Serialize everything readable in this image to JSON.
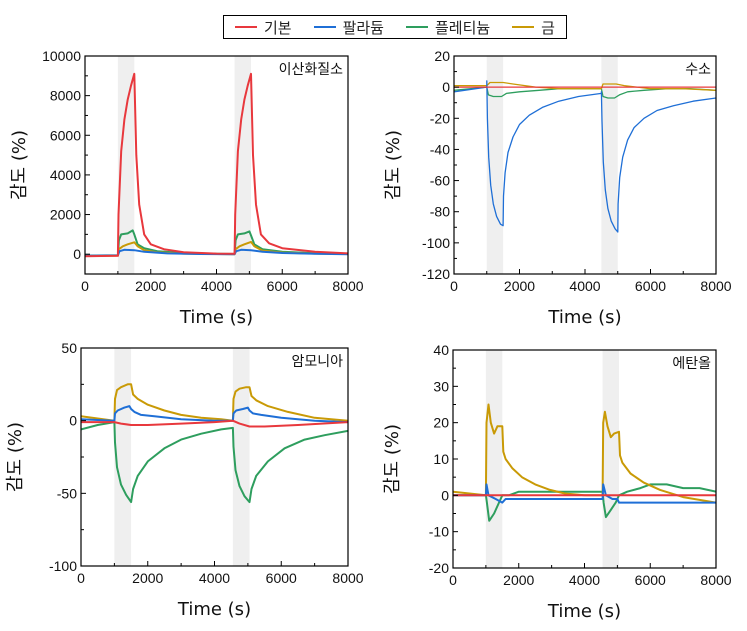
{
  "legend": [
    {
      "name": "기본",
      "color": "#e8383d"
    },
    {
      "name": "팔라듐",
      "color": "#1f6fd6"
    },
    {
      "name": "플레티늄",
      "color": "#2e9e5e"
    },
    {
      "name": "금",
      "color": "#c99a06"
    }
  ],
  "chart_data": [
    {
      "type": "line",
      "title": "이산화질소",
      "xlabel": "Time (s)",
      "ylabel": "감도 (%)",
      "xlim": [
        0,
        8000
      ],
      "ylim": [
        -1000,
        10000
      ],
      "xticks": [
        0,
        2000,
        4000,
        6000,
        8000
      ],
      "yticks": [
        0,
        2000,
        4000,
        6000,
        8000,
        10000
      ],
      "shaded_intervals": [
        [
          1000,
          1500
        ],
        [
          4550,
          5050
        ]
      ],
      "series": [
        {
          "name": "기본",
          "x": [
            0,
            1000,
            1020,
            1100,
            1200,
            1300,
            1400,
            1500,
            1560,
            1650,
            1800,
            2000,
            2400,
            3000,
            4000,
            4550,
            4570,
            4650,
            4750,
            4850,
            4950,
            5050,
            5110,
            5200,
            5350,
            5600,
            6000,
            7000,
            8000
          ],
          "y": [
            -100,
            -80,
            2000,
            5200,
            6800,
            7800,
            8500,
            9100,
            5000,
            2500,
            1000,
            500,
            250,
            100,
            30,
            20,
            2000,
            5200,
            6800,
            7800,
            8500,
            9100,
            5000,
            2500,
            1000,
            550,
            300,
            120,
            40
          ]
        },
        {
          "name": "팔라듐",
          "x": [
            0,
            1000,
            1050,
            1200,
            1500,
            1800,
            2500,
            3500,
            4550,
            4600,
            4750,
            5050,
            5400,
            6000,
            7000,
            8000
          ],
          "y": [
            -80,
            -60,
            150,
            220,
            200,
            120,
            40,
            10,
            0,
            150,
            220,
            200,
            120,
            60,
            20,
            0
          ]
        },
        {
          "name": "플레티늄",
          "x": [
            0,
            1000,
            1030,
            1100,
            1300,
            1450,
            1500,
            1600,
            1800,
            2200,
            3000,
            4000,
            4550,
            4580,
            4650,
            4850,
            5000,
            5050,
            5150,
            5400,
            6000,
            7000,
            8000
          ],
          "y": [
            -70,
            -50,
            700,
            1000,
            1050,
            1200,
            1000,
            500,
            300,
            150,
            60,
            20,
            10,
            700,
            1000,
            1050,
            1150,
            950,
            500,
            250,
            120,
            50,
            20
          ]
        },
        {
          "name": "금",
          "x": [
            0,
            1000,
            1030,
            1150,
            1300,
            1500,
            1600,
            1800,
            2200,
            3000,
            4000,
            4550,
            4580,
            4700,
            4850,
            5050,
            5150,
            5400,
            6000,
            7000,
            8000
          ],
          "y": [
            -90,
            -70,
            250,
            400,
            500,
            600,
            400,
            200,
            90,
            30,
            10,
            0,
            250,
            400,
            500,
            620,
            400,
            180,
            80,
            30,
            10
          ]
        }
      ]
    },
    {
      "type": "line",
      "title": "수소",
      "xlabel": "Time (s)",
      "ylabel": "감도 (%)",
      "xlim": [
        0,
        8000
      ],
      "ylim": [
        -120,
        20
      ],
      "xticks": [
        0,
        2000,
        4000,
        6000,
        8000
      ],
      "yticks": [
        -120,
        -100,
        -80,
        -60,
        -40,
        -20,
        0,
        20
      ],
      "shaded_intervals": [
        [
          1000,
          1500
        ],
        [
          4500,
          5000
        ]
      ],
      "series": [
        {
          "name": "기본",
          "x": [
            0,
            8000
          ],
          "y": [
            0,
            0
          ]
        },
        {
          "name": "팔라듐",
          "x": [
            0,
            1000,
            1000,
            1020,
            1060,
            1120,
            1200,
            1300,
            1420,
            1500,
            1510,
            1560,
            1650,
            1800,
            2000,
            2300,
            2700,
            3200,
            3800,
            4500,
            4500,
            4520,
            4560,
            4620,
            4700,
            4800,
            4920,
            5000,
            5010,
            5060,
            5150,
            5300,
            5500,
            5800,
            6200,
            6700,
            7300,
            8000
          ],
          "y": [
            -3,
            0,
            4,
            -20,
            -45,
            -63,
            -75,
            -83,
            -88,
            -89,
            -70,
            -55,
            -42,
            -32,
            -24,
            -18,
            -13,
            -9,
            -6,
            -4,
            -3,
            -22,
            -48,
            -66,
            -78,
            -86,
            -91,
            -93,
            -75,
            -58,
            -45,
            -34,
            -26,
            -20,
            -15,
            -12,
            -9,
            -7
          ]
        },
        {
          "name": "플레티늄",
          "x": [
            0,
            1000,
            1050,
            1200,
            1450,
            1600,
            2000,
            2600,
            3200,
            4000,
            4500,
            4550,
            4700,
            4900,
            5050,
            5300,
            5800,
            6500,
            7200,
            8000
          ],
          "y": [
            -2,
            0,
            -5,
            -6,
            -6,
            -4,
            -3,
            -2,
            -1,
            -1,
            -1,
            -6,
            -7,
            -7,
            -5,
            -3,
            -2,
            -1,
            -1,
            -2
          ]
        },
        {
          "name": "금",
          "x": [
            0,
            1000,
            1100,
            1300,
            1500,
            1800,
            2500,
            3200,
            4000,
            4500,
            4550,
            4700,
            4950,
            5200,
            6000,
            7000,
            8000
          ],
          "y": [
            1,
            1,
            3,
            3,
            3,
            2,
            0,
            -1,
            -1,
            -1,
            2,
            2,
            2,
            1,
            -1,
            -1,
            -2
          ]
        }
      ]
    },
    {
      "type": "line",
      "title": "암모니아",
      "xlabel": "Time (s)",
      "ylabel": "감도 (%)",
      "xlim": [
        0,
        8000
      ],
      "ylim": [
        -100,
        50
      ],
      "xticks": [
        0,
        2000,
        4000,
        6000,
        8000
      ],
      "yticks": [
        -100,
        -50,
        0,
        50
      ],
      "shaded_intervals": [
        [
          1000,
          1500
        ],
        [
          4550,
          5050
        ]
      ],
      "series": [
        {
          "name": "기본",
          "x": [
            0,
            1000,
            1200,
            1500,
            2000,
            3000,
            4000,
            4550,
            4750,
            5050,
            5500,
            6500,
            8000
          ],
          "y": [
            -1,
            -1,
            -2,
            -3,
            -3,
            -2,
            -1,
            0,
            -2,
            -4,
            -4,
            -3,
            -1
          ]
        },
        {
          "name": "팔라듐",
          "x": [
            0,
            1000,
            1020,
            1100,
            1300,
            1450,
            1500,
            1600,
            1800,
            2200,
            3000,
            4000,
            4550,
            4570,
            4650,
            4850,
            5000,
            5050,
            5150,
            5400,
            6000,
            7000,
            8000
          ],
          "y": [
            1,
            0,
            5,
            7,
            9,
            10,
            8,
            6,
            4,
            3,
            1,
            0,
            0,
            5,
            7,
            8,
            9,
            7,
            5,
            4,
            2,
            0,
            -1
          ]
        },
        {
          "name": "플레티늄",
          "x": [
            0,
            500,
            1000,
            1020,
            1080,
            1200,
            1350,
            1500,
            1560,
            1700,
            2000,
            2500,
            3000,
            3600,
            4200,
            4550,
            4570,
            4630,
            4750,
            4900,
            5050,
            5110,
            5250,
            5600,
            6100,
            6700,
            7300,
            8000
          ],
          "y": [
            -6,
            -3,
            -1,
            -15,
            -32,
            -44,
            -51,
            -56,
            -47,
            -38,
            -28,
            -19,
            -13,
            -9,
            -6,
            -5,
            -18,
            -34,
            -45,
            -52,
            -56,
            -47,
            -38,
            -28,
            -19,
            -13,
            -10,
            -7
          ]
        },
        {
          "name": "금",
          "x": [
            0,
            1000,
            1020,
            1080,
            1200,
            1400,
            1500,
            1560,
            1700,
            2000,
            2500,
            3000,
            3600,
            4200,
            4550,
            4570,
            4630,
            4750,
            4950,
            5050,
            5110,
            5250,
            5600,
            6200,
            7000,
            8000
          ],
          "y": [
            3,
            0,
            15,
            21,
            23,
            25,
            25,
            18,
            15,
            11,
            7,
            4,
            2,
            1,
            0,
            15,
            20,
            22,
            23,
            23,
            17,
            14,
            10,
            6,
            2,
            0
          ]
        }
      ]
    },
    {
      "type": "line",
      "title": "에탄올",
      "xlabel": "Time (s)",
      "ylabel": "감도 (%)",
      "xlim": [
        0,
        8000
      ],
      "ylim": [
        -20,
        40
      ],
      "xticks": [
        0,
        2000,
        4000,
        6000,
        8000
      ],
      "yticks": [
        -20,
        -10,
        0,
        10,
        20,
        30,
        40
      ],
      "shaded_intervals": [
        [
          1000,
          1500
        ],
        [
          4550,
          5050
        ]
      ],
      "series": [
        {
          "name": "기본",
          "x": [
            0,
            8000
          ],
          "y": [
            0,
            0
          ]
        },
        {
          "name": "팔라듐",
          "x": [
            0,
            1000,
            1020,
            1080,
            1300,
            1500,
            1600,
            2000,
            3000,
            4000,
            4550,
            4570,
            4650,
            4850,
            5000,
            5050,
            5300,
            6000,
            7000,
            8000
          ],
          "y": [
            0,
            0,
            3,
            0,
            -1,
            -2,
            -1,
            -1,
            -1,
            -1,
            -1,
            3,
            0,
            -1,
            -1,
            -2,
            -2,
            -2,
            -2,
            -2
          ]
        },
        {
          "name": "플레티늄",
          "x": [
            0,
            1000,
            1030,
            1100,
            1250,
            1400,
            1500,
            1700,
            2000,
            2500,
            3000,
            3500,
            4000,
            4550,
            4580,
            4650,
            4800,
            4950,
            5050,
            5300,
            5700,
            6000,
            6500,
            7000,
            7500,
            8000
          ],
          "y": [
            0,
            0,
            -2,
            -7,
            -5,
            -2,
            0,
            0,
            1,
            1,
            1,
            1,
            1,
            1,
            -2,
            -6,
            -4,
            -2,
            0,
            1,
            2,
            3,
            3,
            2,
            2,
            1
          ]
        },
        {
          "name": "금",
          "x": [
            0,
            1000,
            1020,
            1080,
            1150,
            1250,
            1350,
            1500,
            1530,
            1600,
            1800,
            2100,
            2500,
            2950,
            3400,
            4000,
            4550,
            4570,
            4620,
            4700,
            4800,
            4900,
            5050,
            5080,
            5150,
            5400,
            5800,
            6300,
            7000,
            8000
          ],
          "y": [
            1,
            0,
            20,
            25,
            20,
            17,
            19,
            19,
            12,
            10,
            7.5,
            5,
            3,
            1.5,
            0.5,
            0,
            0,
            20,
            23,
            19,
            16,
            17,
            17.5,
            11,
            9,
            6,
            3.5,
            1.5,
            -0.5,
            -2
          ]
        }
      ]
    }
  ]
}
